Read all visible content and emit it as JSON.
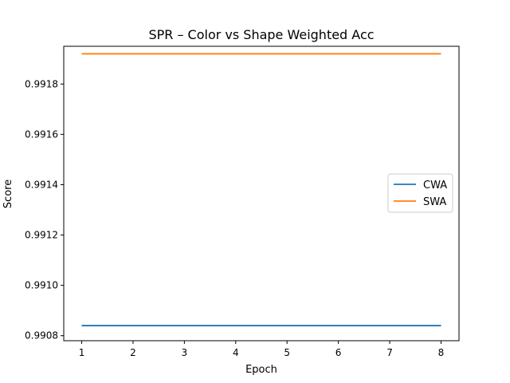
{
  "chart_data": {
    "type": "line",
    "title": "SPR – Color vs Shape Weighted Acc",
    "xlabel": "Epoch",
    "ylabel": "Score",
    "x": [
      1,
      2,
      3,
      4,
      5,
      6,
      7,
      8
    ],
    "x_ticks": [
      "1",
      "2",
      "3",
      "4",
      "5",
      "6",
      "7",
      "8"
    ],
    "y_ticks": [
      "0.9908",
      "0.9910",
      "0.9912",
      "0.9914",
      "0.9916",
      "0.9918"
    ],
    "xlim": [
      0.65,
      8.35
    ],
    "ylim": [
      0.99078,
      0.99195
    ],
    "grid": false,
    "legend_position": "center-right",
    "series": [
      {
        "name": "CWA",
        "color": "#1f77b4",
        "values": [
          0.99084,
          0.99084,
          0.99084,
          0.99084,
          0.99084,
          0.99084,
          0.99084,
          0.99084
        ]
      },
      {
        "name": "SWA",
        "color": "#ff7f0e",
        "values": [
          0.99192,
          0.99192,
          0.99192,
          0.99192,
          0.99192,
          0.99192,
          0.99192,
          0.99192
        ]
      }
    ]
  }
}
